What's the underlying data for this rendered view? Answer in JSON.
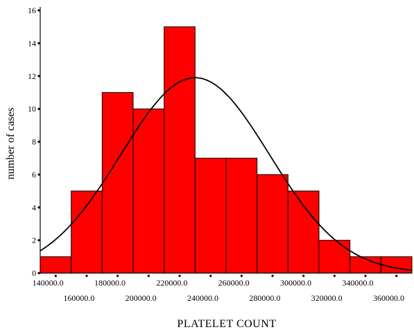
{
  "chart_data": {
    "type": "bar",
    "title": "",
    "xlabel": "PLATELET COUNT",
    "ylabel": "number of cases",
    "bins": [
      {
        "x": 145000,
        "count": 1
      },
      {
        "x": 165000,
        "count": 5
      },
      {
        "x": 185000,
        "count": 11
      },
      {
        "x": 205000,
        "count": 10
      },
      {
        "x": 225000,
        "count": 15
      },
      {
        "x": 245000,
        "count": 7
      },
      {
        "x": 265000,
        "count": 7
      },
      {
        "x": 285000,
        "count": 6
      },
      {
        "x": 305000,
        "count": 5
      },
      {
        "x": 325000,
        "count": 2
      },
      {
        "x": 345000,
        "count": 1
      },
      {
        "x": 365000,
        "count": 1
      }
    ],
    "bin_width": 20000,
    "xlim": [
      135000,
      375000
    ],
    "ylim": [
      0,
      16
    ],
    "y_ticks": [
      "0",
      "2",
      "4",
      "6",
      "8",
      "10",
      "12",
      "14",
      "16"
    ],
    "x_tick_labels_upper": [
      "140000.0",
      "180000.0",
      "220000.0",
      "260000.0",
      "300000.0",
      "340000.0"
    ],
    "x_tick_labels_lower": [
      "160000.0",
      "200000.0",
      "240000.0",
      "280000.0",
      "320000.0",
      "360000.0"
    ],
    "normal_curve": {
      "mean": 235000,
      "peak": 11.9,
      "sd": 48000
    },
    "bar_color": "#ff0000",
    "curve_color": "#000000",
    "grid": false,
    "legend": "none"
  }
}
